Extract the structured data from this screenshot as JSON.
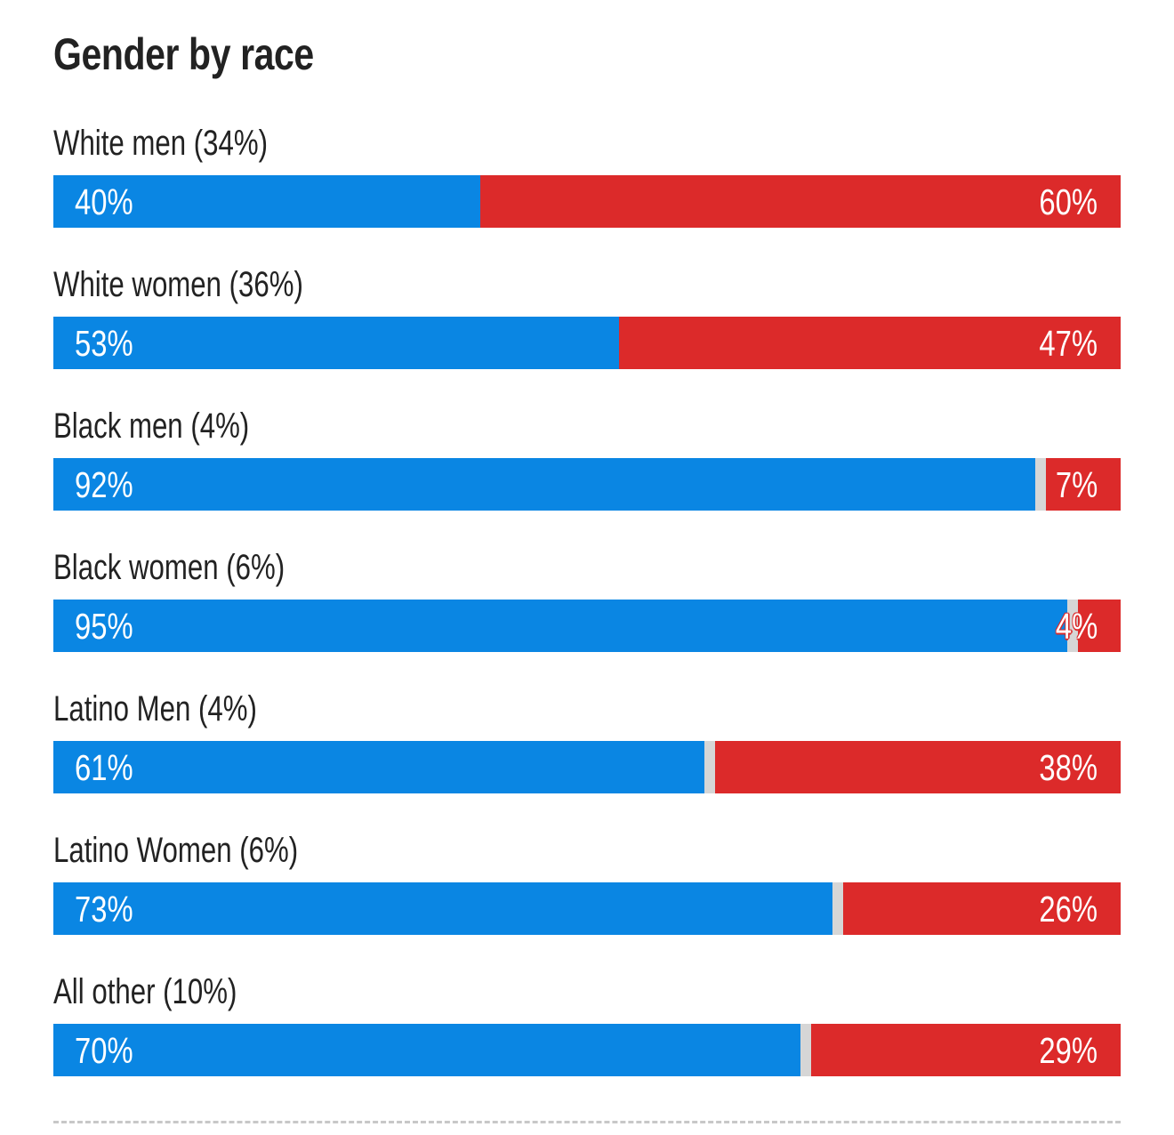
{
  "chart_data": {
    "type": "bar",
    "subtype": "stacked-horizontal-100",
    "title": "Gender by race",
    "xlabel": "",
    "ylabel": "",
    "xlim": [
      0,
      100
    ],
    "categories": [
      "White men (34%)",
      "White women (36%)",
      "Black men (4%)",
      "Black women (6%)",
      "Latino Men (4%)",
      "Latino Women (6%)",
      "All other (10%)"
    ],
    "series": [
      {
        "name": "Democrat",
        "color": "#0a86e3",
        "values": [
          40,
          53,
          92,
          95,
          61,
          73,
          70
        ]
      },
      {
        "name": "Republican",
        "color": "#dc2a2a",
        "values": [
          60,
          47,
          7,
          4,
          38,
          26,
          29
        ]
      }
    ],
    "remainder_color": "#d6d6d6",
    "legend": "none",
    "grid": false
  },
  "rows": [
    {
      "label": "White men (34%)",
      "dem": 40,
      "rep": 60,
      "dem_label": "40%",
      "rep_label": "60%"
    },
    {
      "label": "White women (36%)",
      "dem": 53,
      "rep": 47,
      "dem_label": "53%",
      "rep_label": "47%"
    },
    {
      "label": "Black men (4%)",
      "dem": 92,
      "rep": 7,
      "dem_label": "92%",
      "rep_label": "7%"
    },
    {
      "label": "Black women (6%)",
      "dem": 95,
      "rep": 4,
      "dem_label": "95%",
      "rep_label": "4%"
    },
    {
      "label": "Latino Men (4%)",
      "dem": 61,
      "rep": 38,
      "dem_label": "61%",
      "rep_label": "38%"
    },
    {
      "label": "Latino Women (6%)",
      "dem": 73,
      "rep": 26,
      "dem_label": "73%",
      "rep_label": "26%"
    },
    {
      "label": "All other (10%)",
      "dem": 70,
      "rep": 29,
      "dem_label": "70%",
      "rep_label": "29%"
    }
  ]
}
